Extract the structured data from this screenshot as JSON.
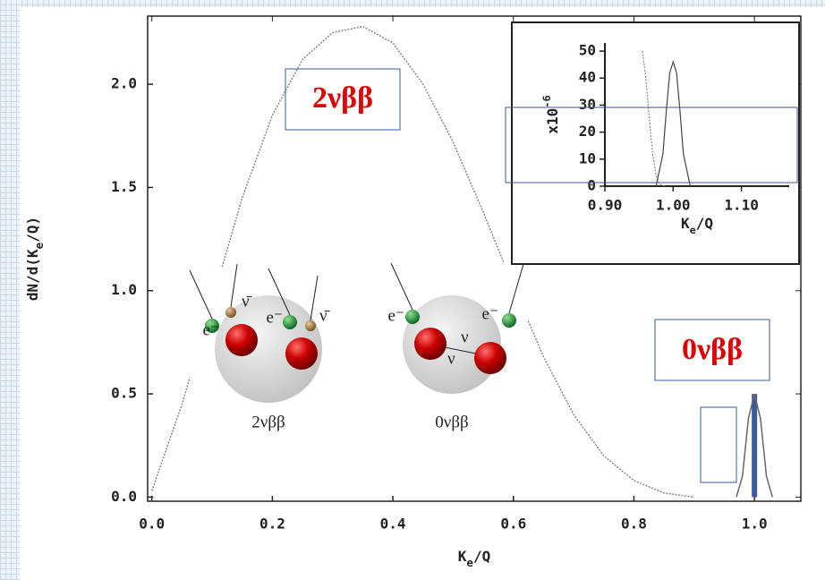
{
  "chart_data": [
    {
      "type": "line",
      "x_label": [
        "K",
        "e",
        "/Q"
      ],
      "y_label": [
        "dN/d(K",
        "e",
        "/Q)"
      ],
      "xlim": [
        -0.007,
        1.077
      ],
      "ylim": [
        -0.02,
        2.33
      ],
      "xticks": [
        {
          "value": 0,
          "label": "0.0"
        },
        {
          "value": 0.2,
          "label": "0.2"
        },
        {
          "value": 0.4,
          "label": "0.4"
        },
        {
          "value": 0.6,
          "label": "0.6"
        },
        {
          "value": 0.8,
          "label": "0.8"
        },
        {
          "value": 1,
          "label": "1.0"
        }
      ],
      "yticks": [
        {
          "value": 0,
          "label": "0.0"
        },
        {
          "value": 0.5,
          "label": "0.5"
        },
        {
          "value": 1,
          "label": "1.0"
        },
        {
          "value": 1.5,
          "label": "1.5"
        },
        {
          "value": 2,
          "label": "2.0"
        }
      ],
      "series": [
        {
          "color": "#888888",
          "dashed": true,
          "x": [
            0,
            0.05,
            0.1,
            0.15,
            0.2,
            0.25,
            0.3,
            0.35,
            0.4,
            0.45,
            0.5,
            0.55,
            0.6,
            0.65,
            0.7,
            0.75,
            0.8,
            0.85,
            0.9
          ],
          "values": [
            0.03,
            0.45,
            0.95,
            1.45,
            1.85,
            2.12,
            2.25,
            2.28,
            2.2,
            2.0,
            1.72,
            1.38,
            1.02,
            0.68,
            0.4,
            0.2,
            0.08,
            0.02,
            0
          ]
        },
        {
          "color": "#666666",
          "dashed": false,
          "x": [
            0.97,
            0.98,
            0.99,
            1.0,
            1.01,
            1.02,
            1.03
          ],
          "values": [
            0,
            0.1,
            0.38,
            0.5,
            0.38,
            0.1,
            0
          ]
        }
      ],
      "annotations": [
        "2νββ",
        "0νββ"
      ]
    },
    {
      "type": "line",
      "x_label": [
        "K",
        "e",
        "/Q"
      ],
      "y_label": [
        "x10",
        "-6"
      ],
      "xlim": [
        0.9,
        1.17
      ],
      "ylim": [
        0,
        53
      ],
      "xticks": [
        {
          "value": 0.9,
          "label": "0.90"
        },
        {
          "value": 1.0,
          "label": "1.00"
        },
        {
          "value": 1.1,
          "label": "1.10"
        }
      ],
      "yticks": [
        0,
        10,
        20,
        30,
        40,
        50
      ],
      "series": [
        {
          "color": "#888888",
          "dashed": true,
          "x": [
            0.955,
            0.96,
            0.965,
            0.97,
            0.975,
            0.98,
            0.987
          ],
          "values": [
            50,
            40,
            25,
            12,
            4,
            1,
            0
          ]
        },
        {
          "color": "#444444",
          "dashed": false,
          "x": [
            0.975,
            0.985,
            0.99,
            0.995,
            1.0,
            1.005,
            1.01,
            1.015,
            1.025
          ],
          "values": [
            0,
            12,
            28,
            42,
            46,
            42,
            28,
            12,
            0
          ]
        }
      ]
    }
  ],
  "diagram": {
    "captions": [
      "2νββ",
      "0νββ"
    ],
    "electron": "e⁻",
    "antineutrino": "ν̄",
    "neutrino": "ν"
  }
}
